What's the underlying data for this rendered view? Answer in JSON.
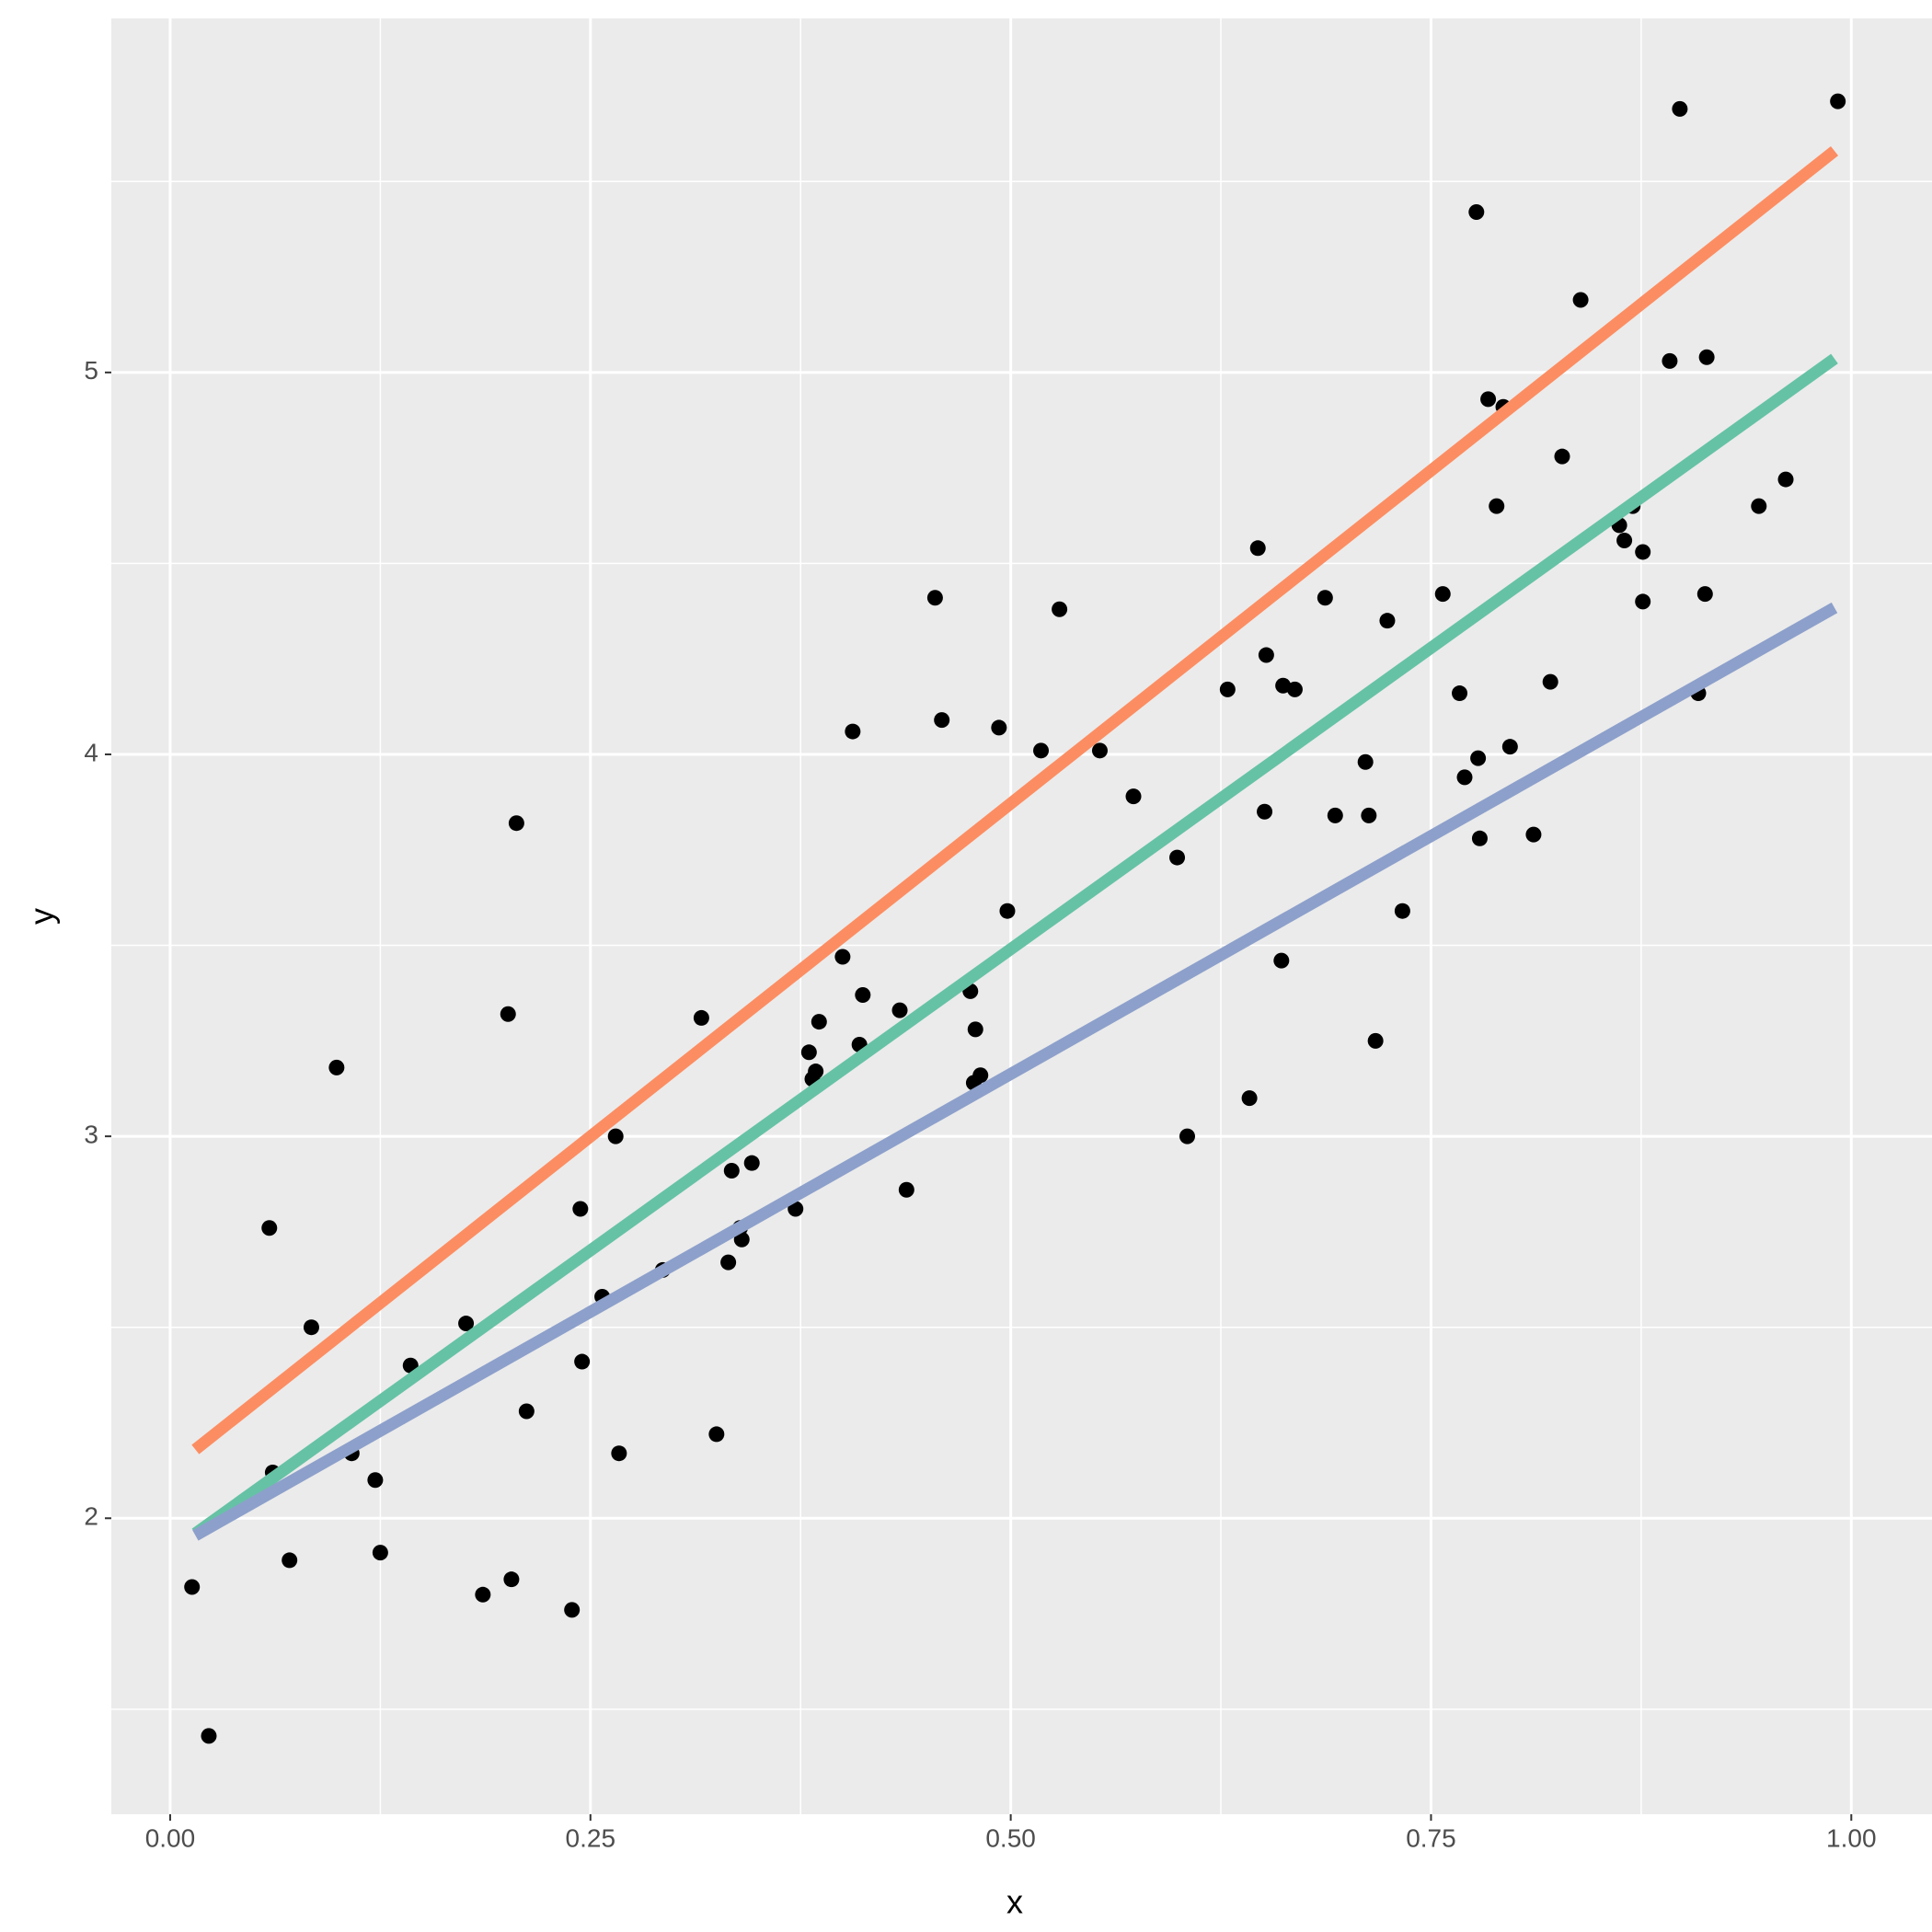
{
  "chart_data": {
    "type": "scatter",
    "xlabel": "x",
    "ylabel": "y",
    "xlim": [
      -0.035,
      1.048
    ],
    "ylim": [
      1.225,
      5.927
    ],
    "xticks": [
      {
        "value": 0,
        "label": "0.00"
      },
      {
        "value": 0.25,
        "label": "0.25"
      },
      {
        "value": 0.5,
        "label": "0.50"
      },
      {
        "value": 0.75,
        "label": "0.75"
      },
      {
        "value": 1,
        "label": "1.00"
      }
    ],
    "yticks": [
      2,
      3,
      4,
      5
    ],
    "x_minor_ticks": [
      0.125,
      0.375,
      0.625,
      0.875
    ],
    "y_minor_ticks": [
      1.5,
      2.5,
      3.5,
      4.5,
      5.5
    ],
    "grid": true,
    "panel_color": "#ebebeb",
    "point_color": "#000000",
    "x": [
      0.013,
      0.023,
      0.059,
      0.061,
      0.071,
      0.084,
      0.099,
      0.108,
      0.122,
      0.125,
      0.143,
      0.176,
      0.186,
      0.201,
      0.203,
      0.206,
      0.212,
      0.239,
      0.244,
      0.245,
      0.257,
      0.265,
      0.267,
      0.293,
      0.316,
      0.325,
      0.332,
      0.334,
      0.339,
      0.34,
      0.346,
      0.372,
      0.38,
      0.382,
      0.384,
      0.386,
      0.4,
      0.406,
      0.41,
      0.412,
      0.434,
      0.438,
      0.455,
      0.459,
      0.476,
      0.478,
      0.479,
      0.482,
      0.493,
      0.498,
      0.518,
      0.529,
      0.553,
      0.573,
      0.599,
      0.605,
      0.629,
      0.642,
      0.647,
      0.651,
      0.652,
      0.661,
      0.662,
      0.669,
      0.687,
      0.693,
      0.711,
      0.713,
      0.717,
      0.724,
      0.733,
      0.757,
      0.767,
      0.77,
      0.777,
      0.778,
      0.779,
      0.784,
      0.789,
      0.793,
      0.797,
      0.811,
      0.821,
      0.828,
      0.839,
      0.862,
      0.865,
      0.87,
      0.876,
      0.876,
      0.892,
      0.898,
      0.909,
      0.913,
      0.914,
      0.945,
      0.961,
      0.992
    ],
    "y": [
      1.82,
      1.43,
      2.76,
      2.12,
      1.89,
      2.5,
      3.18,
      2.17,
      2.1,
      1.91,
      2.4,
      2.51,
      1.8,
      3.32,
      1.84,
      3.82,
      2.28,
      1.76,
      2.81,
      2.41,
      2.58,
      3.0,
      2.17,
      2.65,
      3.31,
      2.22,
      2.67,
      2.91,
      2.76,
      2.73,
      2.93,
      2.81,
      3.22,
      3.15,
      3.17,
      3.3,
      3.47,
      4.06,
      3.24,
      3.37,
      3.33,
      2.86,
      4.41,
      4.09,
      3.38,
      3.14,
      3.28,
      3.16,
      4.07,
      3.59,
      4.01,
      4.38,
      4.01,
      3.89,
      3.73,
      3.0,
      4.17,
      3.1,
      4.54,
      3.85,
      4.26,
      3.46,
      4.18,
      4.17,
      4.41,
      3.84,
      3.98,
      3.84,
      3.25,
      4.35,
      3.59,
      4.42,
      4.16,
      3.94,
      5.42,
      3.99,
      3.78,
      4.93,
      4.65,
      4.91,
      4.02,
      3.79,
      4.19,
      4.78,
      5.19,
      4.6,
      4.56,
      4.65,
      4.53,
      4.4,
      5.03,
      5.69,
      4.16,
      4.42,
      5.04,
      4.65,
      4.72,
      5.71
    ],
    "lines": [
      {
        "color": "#fc8d62",
        "x": [
          0.015,
          0.99
        ],
        "values": [
          2.18,
          5.58
        ]
      },
      {
        "color": "#66c2a5",
        "x": [
          0.015,
          0.99
        ],
        "values": [
          1.96,
          5.036
        ]
      },
      {
        "color": "#8da0cb",
        "x": [
          0.015,
          0.99
        ],
        "values": [
          1.955,
          4.384
        ]
      }
    ]
  }
}
